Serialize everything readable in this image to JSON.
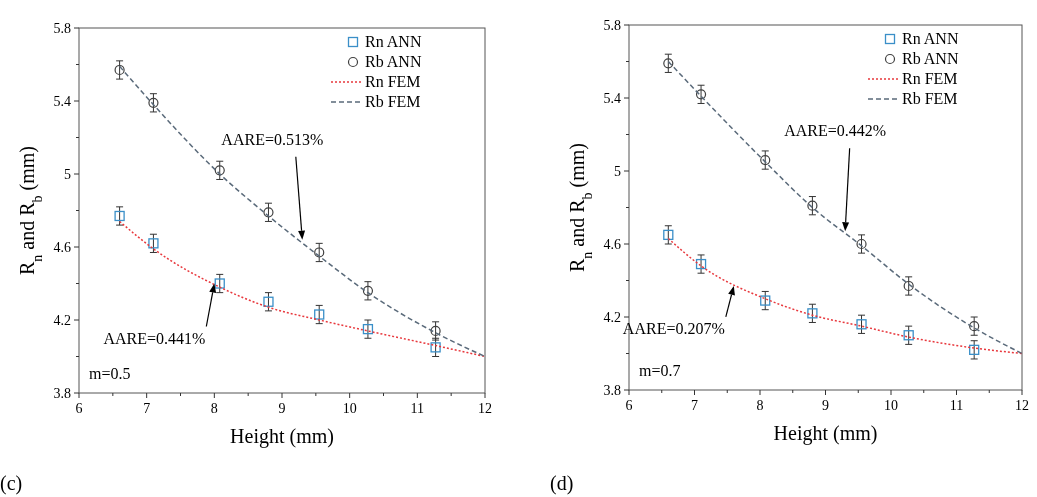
{
  "chart_data": [
    {
      "type": "scatter",
      "xlabel": "Height (mm)",
      "ylabel": "R$_{n}$ and R$_{b}$ (mm)",
      "xlim": [
        6,
        12
      ],
      "ylim": [
        3.8,
        5.8
      ],
      "xticks": [
        6,
        {
          "value": 6.5,
          "label": null
        },
        7,
        {
          "value": 7.5,
          "label": null
        },
        8,
        {
          "value": 8.5,
          "label": null
        },
        9,
        {
          "value": 9.5,
          "label": null
        },
        10,
        {
          "value": 10.5,
          "label": null
        },
        11,
        {
          "value": 11.5,
          "label": null
        },
        12
      ],
      "yticks": [
        3.8,
        {
          "value": 4.0,
          "label": null
        },
        4.2,
        {
          "value": 4.4,
          "label": null
        },
        4.6,
        {
          "value": 4.8,
          "label": null
        },
        {
          "value": 5.0,
          "label": "5"
        },
        {
          "value": 5.2,
          "label": null
        },
        5.4,
        {
          "value": 5.6,
          "label": null
        },
        5.8
      ],
      "legend": "top right",
      "grid": false,
      "series": [
        {
          "name": "Rn ANN",
          "type": "scatter",
          "marker": "square",
          "color": "#3a8fc8",
          "x": [
            6.6,
            7.1,
            8.08,
            8.8,
            9.55,
            10.27,
            11.27
          ],
          "values": [
            4.77,
            4.62,
            4.4,
            4.3,
            4.23,
            4.15,
            4.05
          ],
          "errors": [
            0.05,
            0.05,
            0.05,
            0.05,
            0.05,
            0.05,
            0.05
          ]
        },
        {
          "name": "Rb ANN",
          "type": "scatter",
          "marker": "circle",
          "color": "#404040",
          "x": [
            6.6,
            7.1,
            8.08,
            8.8,
            9.55,
            10.27,
            11.27
          ],
          "values": [
            5.57,
            5.39,
            5.02,
            4.79,
            4.57,
            4.36,
            4.14
          ],
          "errors": [
            0.05,
            0.05,
            0.05,
            0.05,
            0.05,
            0.05,
            0.05
          ]
        },
        {
          "name": "Rn FEM",
          "type": "line",
          "line_style": "dotted",
          "color": "#e8383d",
          "x": [
            6.6,
            7.1,
            8.08,
            8.8,
            9.55,
            10.27,
            11.27,
            12
          ],
          "values": [
            4.74,
            4.59,
            4.38,
            4.27,
            4.2,
            4.14,
            4.06,
            4.0
          ]
        },
        {
          "name": "Rb FEM",
          "type": "line",
          "line_style": "dashed",
          "color": "#5a6a7a",
          "x": [
            6.6,
            7.1,
            8.08,
            8.8,
            9.55,
            10.27,
            11.27,
            12
          ],
          "values": [
            5.59,
            5.38,
            5.0,
            4.77,
            4.55,
            4.35,
            4.13,
            4.0
          ]
        }
      ],
      "annotations": [
        {
          "text": "AARE=0.513%",
          "x": 9.3,
          "y": 4.64
        },
        {
          "text": "AARE=0.441%",
          "x": 8.0,
          "y": 4.4
        },
        "m=0.5",
        "(c)"
      ]
    },
    {
      "type": "scatter",
      "xlabel": "Height (mm)",
      "ylabel": "R$_{n}$ and R$_{b}$ (mm)",
      "xlim": [
        6,
        12
      ],
      "ylim": [
        3.8,
        5.8
      ],
      "xticks": [
        6,
        {
          "value": 6.5,
          "label": null
        },
        7,
        {
          "value": 7.5,
          "label": null
        },
        8,
        {
          "value": 8.5,
          "label": null
        },
        9,
        {
          "value": 9.5,
          "label": null
        },
        10,
        {
          "value": 10.5,
          "label": null
        },
        11,
        {
          "value": 11.5,
          "label": null
        },
        12
      ],
      "yticks": [
        3.8,
        {
          "value": 4.0,
          "label": null
        },
        4.2,
        {
          "value": 4.4,
          "label": null
        },
        4.6,
        {
          "value": 4.8,
          "label": null
        },
        {
          "value": 5.0,
          "label": "5"
        },
        {
          "value": 5.2,
          "label": null
        },
        5.4,
        {
          "value": 5.6,
          "label": null
        },
        5.8
      ],
      "legend": "top right",
      "grid": false,
      "series": [
        {
          "name": "Rn ANN",
          "type": "scatter",
          "marker": "square",
          "color": "#3a8fc8",
          "x": [
            6.6,
            7.1,
            8.08,
            8.8,
            9.55,
            10.27,
            11.27
          ],
          "values": [
            4.65,
            4.49,
            4.29,
            4.22,
            4.16,
            4.1,
            4.02
          ],
          "errors": [
            0.05,
            0.05,
            0.05,
            0.05,
            0.05,
            0.05,
            0.05
          ]
        },
        {
          "name": "Rb ANN",
          "type": "scatter",
          "marker": "circle",
          "color": "#404040",
          "x": [
            6.6,
            7.1,
            8.08,
            8.8,
            9.55,
            10.27,
            11.27
          ],
          "values": [
            5.59,
            5.42,
            5.06,
            4.81,
            4.6,
            4.37,
            4.15
          ],
          "errors": [
            0.05,
            0.05,
            0.05,
            0.05,
            0.05,
            0.05,
            0.05
          ]
        },
        {
          "name": "Rn FEM",
          "type": "line",
          "line_style": "dotted",
          "color": "#e8383d",
          "x": [
            6.6,
            7.1,
            8.08,
            8.8,
            9.55,
            10.27,
            11.27,
            12
          ],
          "values": [
            4.63,
            4.48,
            4.3,
            4.21,
            4.15,
            4.09,
            4.03,
            4.0
          ]
        },
        {
          "name": "Rb FEM",
          "type": "line",
          "line_style": "dashed",
          "color": "#5a6a7a",
          "x": [
            6.6,
            7.1,
            8.08,
            8.8,
            9.55,
            10.27,
            11.27,
            12
          ],
          "values": [
            5.6,
            5.41,
            5.05,
            4.8,
            4.59,
            4.38,
            4.14,
            4.0
          ]
        }
      ],
      "annotations": [
        {
          "text": "AARE=0.442%",
          "x": 9.3,
          "y": 4.67
        },
        {
          "text": "AARE=0.207%",
          "x": 7.6,
          "y": 4.37
        },
        "m=0.7",
        "(d)"
      ]
    }
  ]
}
